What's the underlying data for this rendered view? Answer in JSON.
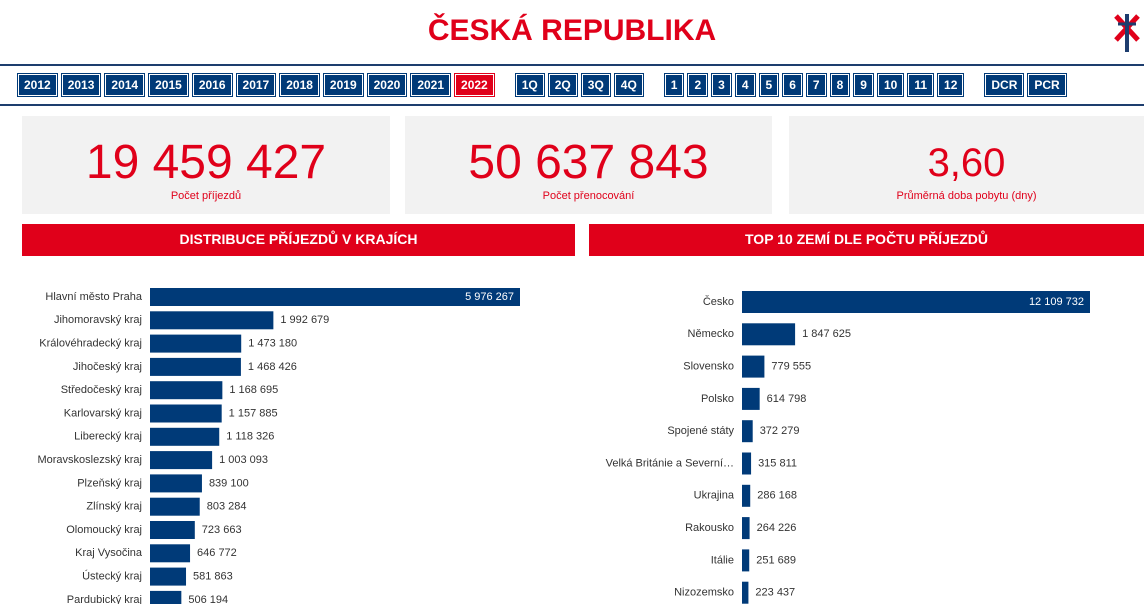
{
  "header": {
    "title": "ČESKÁ REPUBLIKA"
  },
  "filters": {
    "years": [
      "2012",
      "2013",
      "2014",
      "2015",
      "2016",
      "2017",
      "2018",
      "2019",
      "2020",
      "2021",
      "2022"
    ],
    "selected_year": "2022",
    "quarters": [
      "1Q",
      "2Q",
      "3Q",
      "4Q"
    ],
    "months": [
      "1",
      "2",
      "3",
      "4",
      "5",
      "6",
      "7",
      "8",
      "9",
      "10",
      "11",
      "12"
    ],
    "other": [
      "DCR",
      "PCR"
    ]
  },
  "kpis": [
    {
      "value": "19 459 427",
      "label": "Počet příjezdů"
    },
    {
      "value": "50 637 843",
      "label": "Počet přenocování"
    },
    {
      "value": "3,60",
      "label": "Průměrná doba pobytu (dny)"
    }
  ],
  "chart_data": [
    {
      "type": "hbar",
      "title": "DISTRIBUCE PŘÍJEZDŮ V KRAJÍCH",
      "color": "#003a78",
      "categories": [
        "Hlavní město Praha",
        "Jihomoravský kraj",
        "Královéhradecký kraj",
        "Jihočeský kraj",
        "Středočeský kraj",
        "Karlovarský kraj",
        "Liberecký kraj",
        "Moravskoslezský kraj",
        "Plzeňský kraj",
        "Zlínský kraj",
        "Olomoucký kraj",
        "Kraj Vysočina",
        "Ústecký kraj",
        "Pardubický kraj"
      ],
      "values": [
        5976267,
        1992679,
        1473180,
        1468426,
        1168695,
        1157885,
        1118326,
        1003093,
        839100,
        803284,
        723663,
        646772,
        581863,
        506194
      ],
      "value_labels": [
        "5 976 267",
        "1 992 679",
        "1 473 180",
        "1 468 426",
        "1 168 695",
        "1 157 885",
        "1 118 326",
        "1 003 093",
        "839 100",
        "803 284",
        "723 663",
        "646 772",
        "581 863",
        "506 194"
      ]
    },
    {
      "type": "hbar",
      "title": "TOP 10 ZEMÍ DLE POČTU PŘÍJEZDŮ",
      "color": "#003a78",
      "categories": [
        "Česko",
        "Německo",
        "Slovensko",
        "Polsko",
        "Spojené státy",
        "Velká Británie a Severní…",
        "Ukrajina",
        "Rakousko",
        "Itálie",
        "Nizozemsko"
      ],
      "values": [
        12109732,
        1847625,
        779555,
        614798,
        372279,
        315811,
        286168,
        264226,
        251689,
        223437
      ],
      "value_labels": [
        "12 109 732",
        "1 847 625",
        "779 555",
        "614 798",
        "372 279",
        "315 811",
        "286 168",
        "264 226",
        "251 689",
        "223 437"
      ]
    }
  ]
}
